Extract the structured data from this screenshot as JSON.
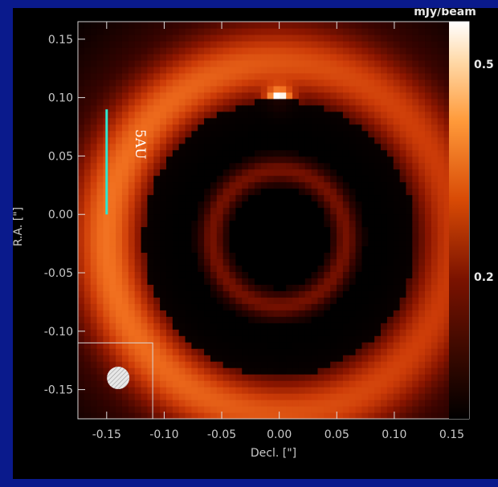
{
  "chart_data": {
    "type": "heatmap",
    "xlabel": "Decl. [\"]",
    "ylabel": "R.A. [\"]",
    "xlim": [
      -0.175,
      0.165
    ],
    "ylim": [
      -0.175,
      0.165
    ],
    "x_ticks": [
      -0.15,
      -0.1,
      -0.05,
      0.0,
      0.05,
      0.1,
      0.15
    ],
    "x_tick_labels": [
      "-0.15",
      "-0.10",
      "-0.05",
      "0.00",
      "0.05",
      "0.10",
      "0.15"
    ],
    "y_ticks": [
      0.15,
      0.1,
      0.05,
      0.0,
      -0.05,
      -0.1,
      -0.15
    ],
    "y_tick_labels": [
      "0.15",
      "0.10",
      "0.05",
      "0.00",
      "-0.05",
      "-0.10",
      "-0.15"
    ],
    "colorbar": {
      "label": "mJy/beam",
      "ticks": [
        0.5,
        0.2
      ],
      "tick_labels": [
        "0.5",
        "0.2"
      ]
    },
    "structures": [
      {
        "name": "outer ring",
        "radius_arcsec": 0.13,
        "peak_mjy_beam": 0.2
      },
      {
        "name": "inner ring",
        "radius_arcsec": 0.055,
        "peak_mjy_beam": 0.08
      },
      {
        "name": "compact source",
        "x_arcsec": 0.0,
        "y_arcsec": 0.095,
        "peak_mjy_beam": 0.5
      }
    ],
    "annotations": [
      {
        "text": "5AU",
        "type": "scale-bar",
        "x_arcsec": -0.15,
        "y_range": [
          0.0,
          0.09
        ],
        "color": "#2ee6d0"
      }
    ],
    "beam": {
      "x_arcsec": -0.14,
      "y_arcsec": -0.14
    }
  },
  "colors": {
    "background": "#0a1a8c",
    "frame": "#000000",
    "scale_bar": "#2ee6d0"
  }
}
